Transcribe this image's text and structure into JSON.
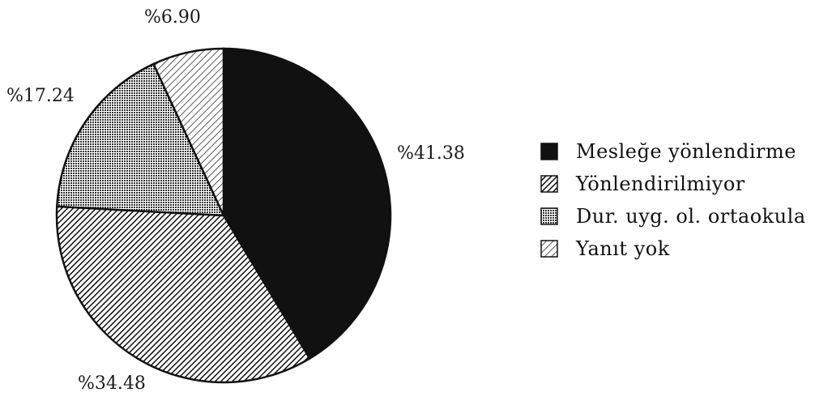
{
  "chart_data": {
    "type": "pie",
    "title": "",
    "categories": [
      "Mesleğe yönlendirme",
      "Yönlendirilmiyor",
      "Dur. uyg. ol. ortaokula",
      "Yanıt yok"
    ],
    "values": [
      41.38,
      34.48,
      17.24,
      6.9
    ],
    "labels": [
      "%41.38",
      "%34.48",
      "%17.24",
      "%6.90"
    ],
    "legend_position": "right",
    "fills": [
      "solid",
      "hatch-dense",
      "dots",
      "hatch-light"
    ]
  }
}
